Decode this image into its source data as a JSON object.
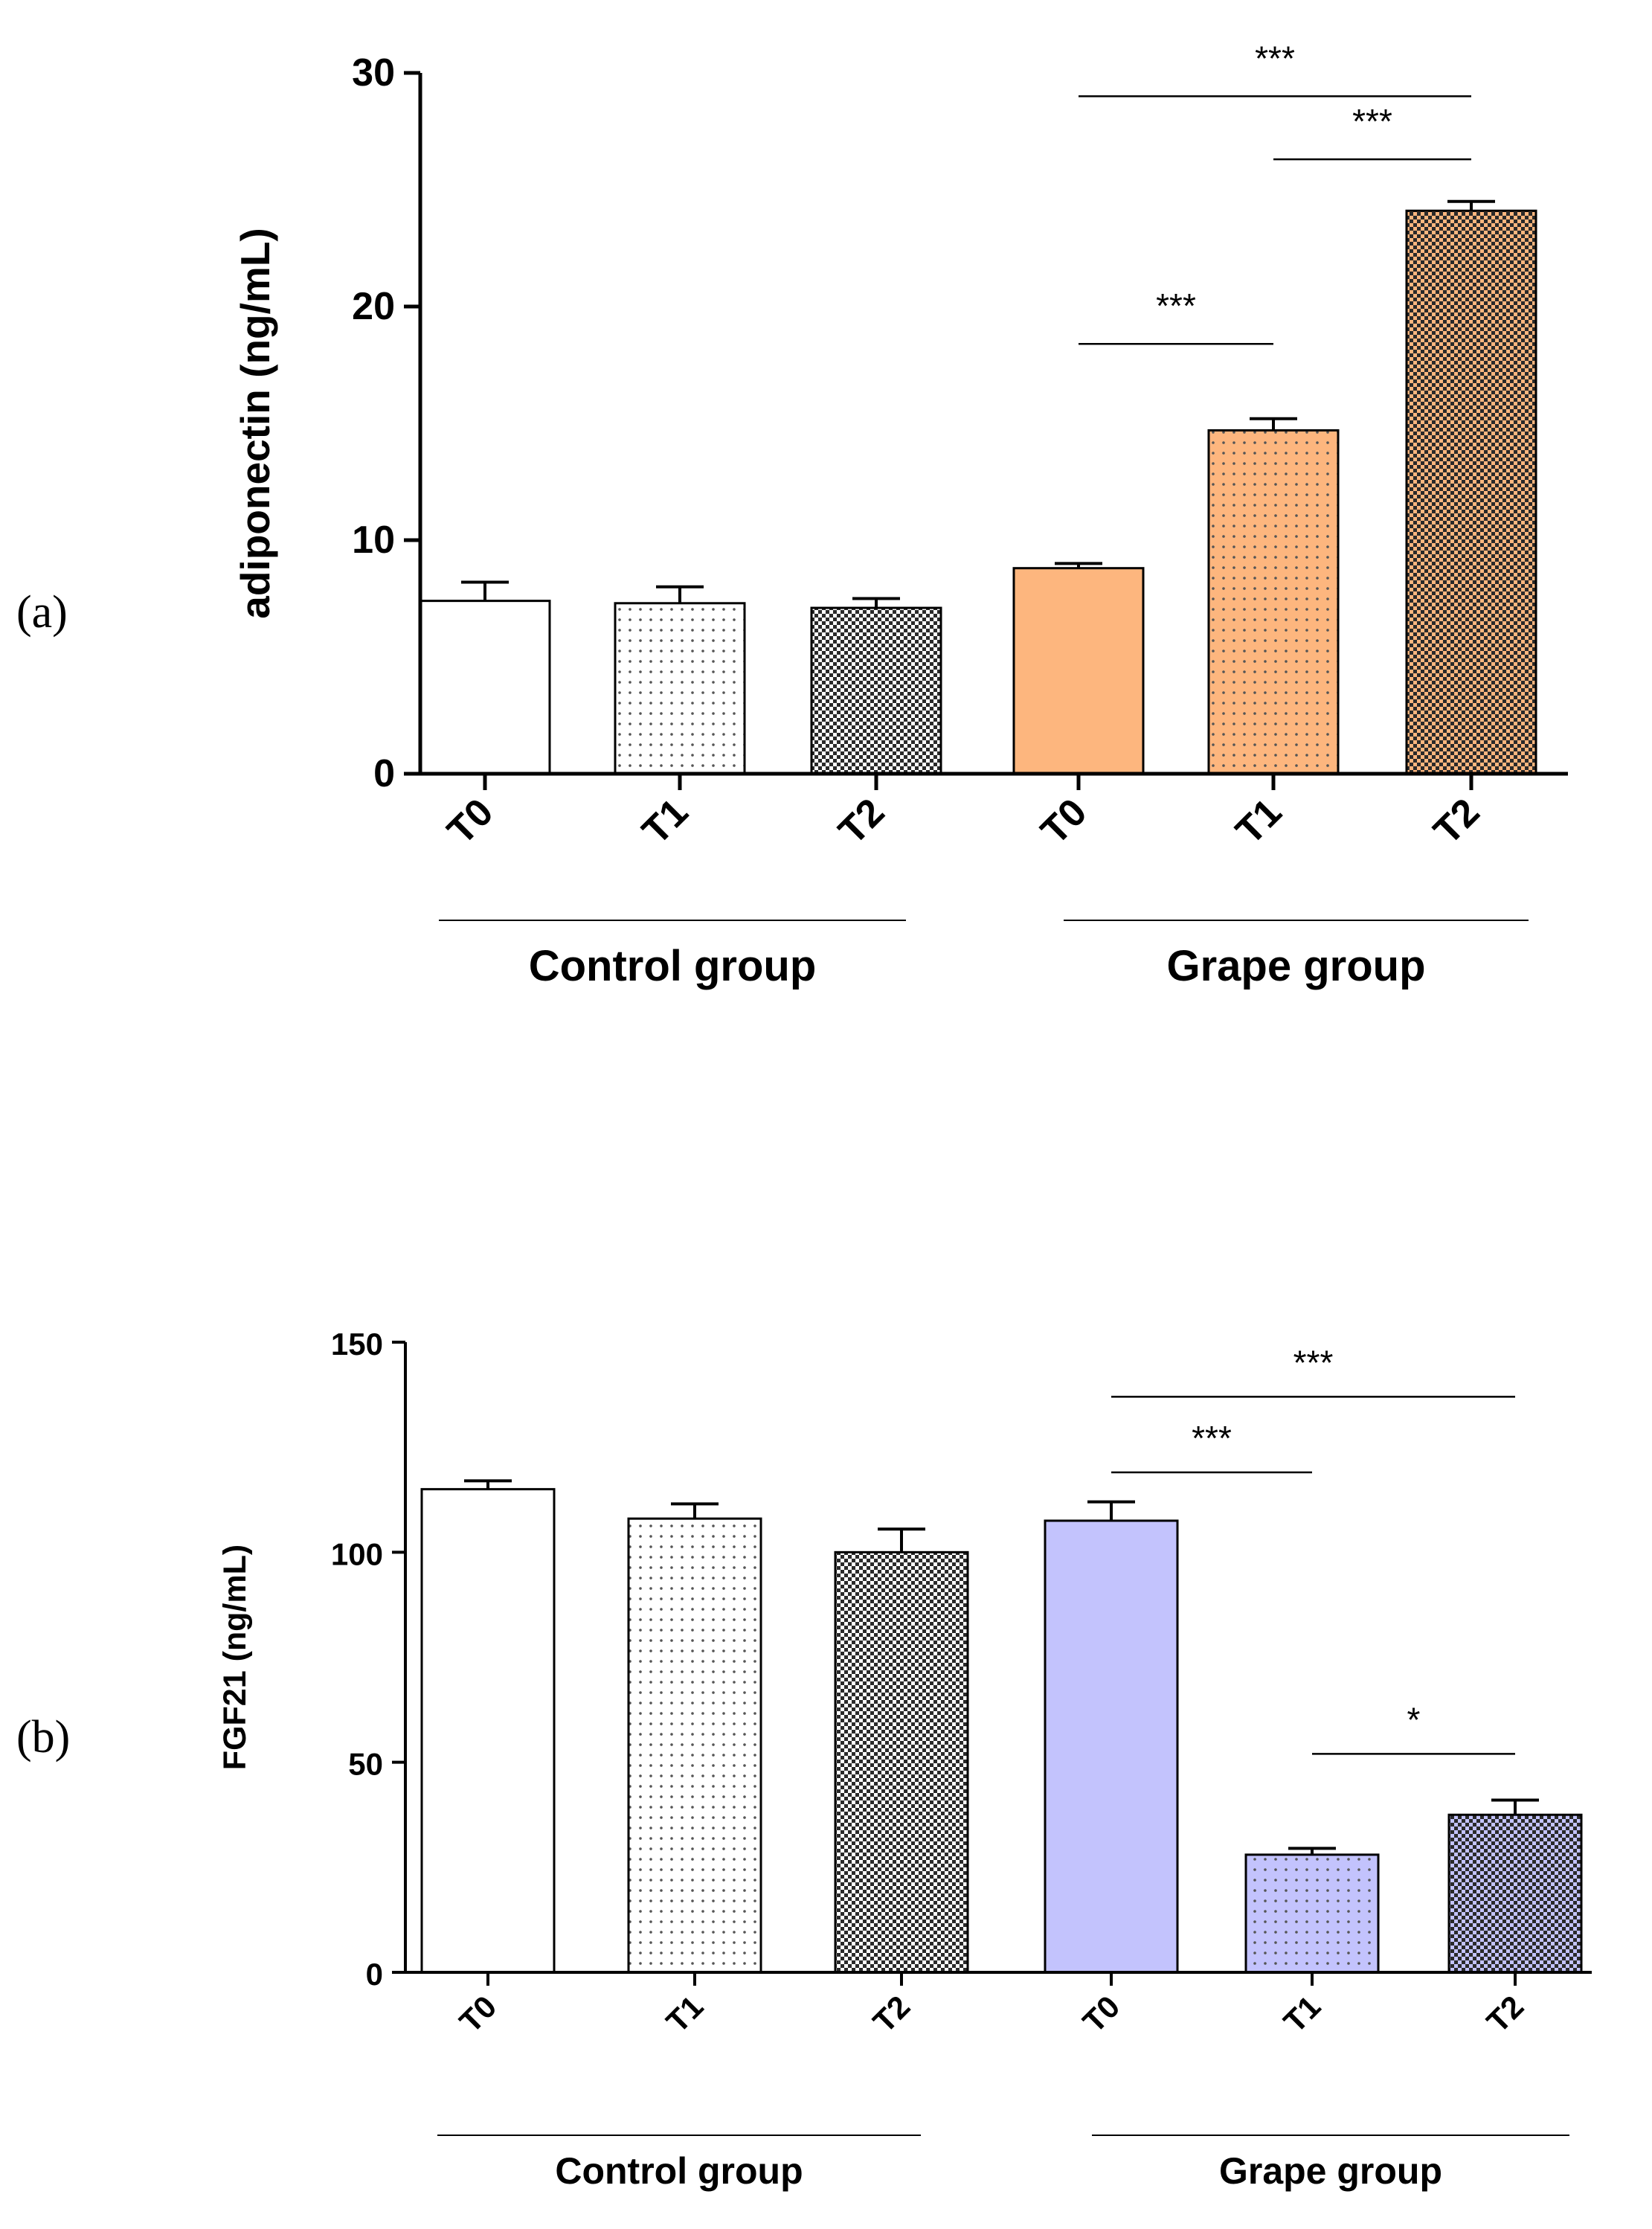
{
  "figure_labels": [
    "(a)",
    "(b)"
  ],
  "chart_data": [
    {
      "panel": "(a)",
      "type": "bar",
      "title": "",
      "xlabel": "",
      "ylabel": "adiponectin (ng/mL)",
      "ylim": [
        0,
        30
      ],
      "yticks": [
        0,
        10,
        20,
        30
      ],
      "categories": [
        "T0",
        "T1",
        "T2",
        "T0",
        "T1",
        "T2"
      ],
      "groups": [
        {
          "name": "Control group",
          "indices": [
            0,
            1,
            2
          ]
        },
        {
          "name": "Grape group",
          "indices": [
            3,
            4,
            5
          ]
        }
      ],
      "values": [
        7.4,
        7.3,
        7.1,
        8.8,
        14.7,
        24.1
      ],
      "errors": [
        0.8,
        0.7,
        0.4,
        0.2,
        0.5,
        0.4
      ],
      "fill_colors": [
        "#ffffff",
        "#ffffff",
        "#ffffff",
        "#fdb67e",
        "#fdb67e",
        "#fdb67e"
      ],
      "patterns": [
        "none",
        "dots-sparse",
        "checker",
        "none",
        "dots-sparse",
        "checker"
      ],
      "significance": [
        {
          "from": 3,
          "to": 5,
          "label": "***",
          "level": 29.0
        },
        {
          "from": 4,
          "to": 5,
          "label": "***",
          "level": 26.3
        },
        {
          "from": 3,
          "to": 4,
          "label": "***",
          "level": 18.4
        }
      ]
    },
    {
      "panel": "(b)",
      "type": "bar",
      "title": "",
      "xlabel": "",
      "ylabel": "FGF21 (ng/mL)",
      "ylim": [
        0,
        150
      ],
      "yticks": [
        0,
        50,
        100,
        150
      ],
      "categories": [
        "T0",
        "T1",
        "T2",
        "T0",
        "T1",
        "T2"
      ],
      "groups": [
        {
          "name": "Control group",
          "indices": [
            0,
            1,
            2
          ]
        },
        {
          "name": "Grape group",
          "indices": [
            3,
            4,
            5
          ]
        }
      ],
      "values": [
        115,
        108,
        100,
        107.5,
        28,
        37.5
      ],
      "errors": [
        2,
        3.5,
        5.5,
        4.5,
        1.5,
        3.5
      ],
      "fill_colors": [
        "#ffffff",
        "#ffffff",
        "#ffffff",
        "#c3c3fd",
        "#c3c3fd",
        "#c3c3fd"
      ],
      "patterns": [
        "none",
        "dots-sparse",
        "checker",
        "none",
        "dots-sparse",
        "checker"
      ],
      "significance": [
        {
          "from": 3,
          "to": 5,
          "label": "***",
          "level": 137
        },
        {
          "from": 3,
          "to": 4,
          "label": "***",
          "level": 119
        },
        {
          "from": 4,
          "to": 5,
          "label": "*",
          "level": 52
        }
      ]
    }
  ]
}
